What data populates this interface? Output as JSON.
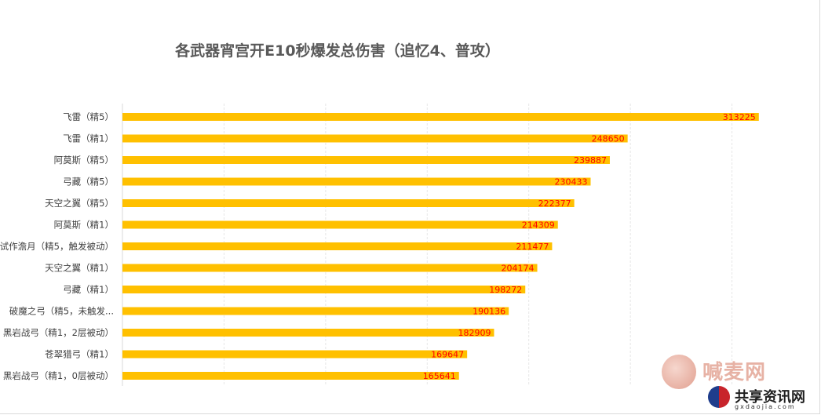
{
  "chart_data": {
    "type": "bar",
    "orientation": "horizontal",
    "title": "各武器宵宫开E10秒爆发总伤害（追忆4、普攻）",
    "categories": [
      "飞雷（精5）",
      "飞雷（精1）",
      "阿莫斯（精5）",
      "弓藏（精5）",
      "天空之翼（精5）",
      "阿莫斯（精1）",
      "试作澹月（精5，触发被动）",
      "天空之翼（精1）",
      "弓藏（精1）",
      "破魔之弓（精5，未触发...",
      "黑岩战弓（精1，2层被动）",
      "苍翠猎弓（精1）",
      "黑岩战弓（精1，0层被动）"
    ],
    "values": [
      313225,
      248650,
      239887,
      230433,
      222377,
      214309,
      211477,
      204174,
      198272,
      190136,
      182909,
      169647,
      165641
    ],
    "xlim": [
      0,
      350000
    ],
    "grid": true,
    "bar_color": "#ffc000",
    "label_color": "#ff0000"
  },
  "watermark": {
    "brand1": "喊麦网",
    "brand1_dj": "DJ",
    "brand2": "共享资讯网",
    "brand2_sub": "gxdaojia.com"
  }
}
